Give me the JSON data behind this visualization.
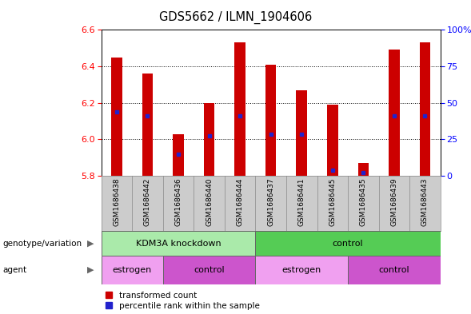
{
  "title": "GDS5662 / ILMN_1904606",
  "samples": [
    "GSM1686438",
    "GSM1686442",
    "GSM1686436",
    "GSM1686440",
    "GSM1686444",
    "GSM1686437",
    "GSM1686441",
    "GSM1686445",
    "GSM1686435",
    "GSM1686439",
    "GSM1686443"
  ],
  "bar_tops": [
    6.45,
    6.36,
    6.03,
    6.2,
    6.53,
    6.41,
    6.27,
    6.19,
    5.87,
    6.49,
    6.53
  ],
  "bar_bottoms": [
    5.8,
    5.8,
    5.8,
    5.8,
    5.8,
    5.8,
    5.8,
    5.8,
    5.8,
    5.8,
    5.8
  ],
  "blue_marks": [
    6.15,
    6.13,
    5.92,
    6.02,
    6.13,
    6.03,
    6.03,
    5.83,
    5.82,
    6.13,
    6.13
  ],
  "ylim": [
    5.8,
    6.6
  ],
  "yticks": [
    5.8,
    6.0,
    6.2,
    6.4,
    6.6
  ],
  "right_yticks": [
    0,
    25,
    50,
    75,
    100
  ],
  "bar_color": "#cc0000",
  "blue_color": "#2222cc",
  "groups": {
    "genotype": [
      {
        "label": "KDM3A knockdown",
        "start": 0,
        "end": 5,
        "color": "#aaeaaa"
      },
      {
        "label": "control",
        "start": 5,
        "end": 11,
        "color": "#55cc55"
      }
    ],
    "agent": [
      {
        "label": "estrogen",
        "start": 0,
        "end": 2,
        "color": "#f0a0f0"
      },
      {
        "label": "control",
        "start": 2,
        "end": 5,
        "color": "#cc55cc"
      },
      {
        "label": "estrogen",
        "start": 5,
        "end": 8,
        "color": "#f0a0f0"
      },
      {
        "label": "control",
        "start": 8,
        "end": 11,
        "color": "#cc55cc"
      }
    ]
  },
  "legend_items": [
    {
      "label": "transformed count",
      "color": "#cc0000"
    },
    {
      "label": "percentile rank within the sample",
      "color": "#2222cc"
    }
  ],
  "left_label": "genotype/variation",
  "agent_label": "agent",
  "bar_width": 0.35,
  "sample_bg_color": "#cccccc",
  "sample_sep_color": "#aaaaaa",
  "background_color": "#ffffff"
}
